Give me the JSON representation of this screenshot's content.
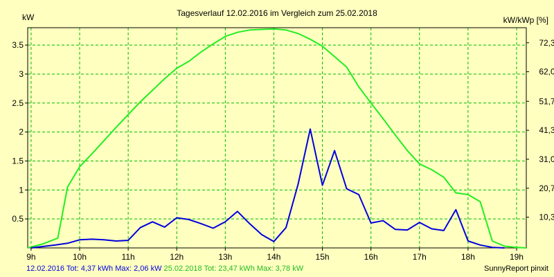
{
  "chart_data": {
    "type": "line",
    "title": "Tagesverlauf 12.02.2016 im Vergleich zum 25.02.2018",
    "ylabel_left": "kW",
    "ylabel_right": "kW/kWp [%]",
    "ylim": [
      0,
      3.8
    ],
    "xlim": [
      8.93,
      19.2
    ],
    "grid": true,
    "x_ticks": [
      9,
      10,
      11,
      12,
      13,
      14,
      15,
      16,
      17,
      18,
      19
    ],
    "x_tick_labels": [
      "9h",
      "10h",
      "11h",
      "12h",
      "13h",
      "14h",
      "15h",
      "16h",
      "17h",
      "18h",
      "19h"
    ],
    "y_ticks_left": [
      0.5,
      1,
      1.5,
      2,
      2.5,
      3,
      3.5
    ],
    "y_tick_labels_left": [
      "0.5",
      "1",
      "1.5",
      "2",
      "2.5",
      "3",
      "3.5"
    ],
    "y_ticks_right": [
      0.53,
      1.03,
      1.53,
      2.03,
      2.53,
      3.04,
      3.54
    ],
    "y_tick_labels_right": [
      "10,3",
      "20,7",
      "31,0",
      "41,3",
      "51,7",
      "62,0",
      "72,3"
    ],
    "series": [
      {
        "name": "12.02.2016",
        "color": "#0000dd",
        "x": [
          9.0,
          9.5,
          9.75,
          10.0,
          10.25,
          10.5,
          10.75,
          11.0,
          11.25,
          11.5,
          11.75,
          12.0,
          12.25,
          12.5,
          12.75,
          13.0,
          13.25,
          13.5,
          13.75,
          14.0,
          14.25,
          14.5,
          14.75,
          15.0,
          15.25,
          15.5,
          15.75,
          16.0,
          16.25,
          16.5,
          16.75,
          17.0,
          17.25,
          17.5,
          17.75,
          18.0,
          18.25,
          18.5,
          18.75
        ],
        "y": [
          0.0,
          0.05,
          0.08,
          0.14,
          0.15,
          0.14,
          0.12,
          0.13,
          0.35,
          0.45,
          0.36,
          0.52,
          0.49,
          0.42,
          0.34,
          0.45,
          0.63,
          0.42,
          0.23,
          0.11,
          0.35,
          1.1,
          2.05,
          1.08,
          1.68,
          1.02,
          0.92,
          0.43,
          0.47,
          0.32,
          0.31,
          0.44,
          0.33,
          0.3,
          0.66,
          0.12,
          0.05,
          0.01,
          0.0
        ]
      },
      {
        "name": "25.02.2018",
        "color": "#22ee22",
        "x": [
          8.93,
          9.25,
          9.55,
          9.75,
          10.0,
          10.25,
          10.5,
          10.75,
          11.0,
          11.25,
          11.5,
          11.75,
          12.0,
          12.25,
          12.5,
          12.75,
          13.0,
          13.25,
          13.5,
          13.75,
          14.0,
          14.25,
          14.5,
          14.75,
          15.0,
          15.25,
          15.5,
          15.75,
          16.0,
          16.25,
          16.5,
          16.75,
          17.0,
          17.25,
          17.5,
          17.75,
          18.0,
          18.25,
          18.5,
          18.75,
          19.0,
          19.2
        ],
        "y": [
          0.0,
          0.07,
          0.17,
          1.05,
          1.4,
          1.62,
          1.85,
          2.08,
          2.3,
          2.52,
          2.72,
          2.92,
          3.1,
          3.22,
          3.38,
          3.52,
          3.65,
          3.72,
          3.76,
          3.77,
          3.78,
          3.76,
          3.7,
          3.6,
          3.48,
          3.3,
          3.12,
          2.78,
          2.5,
          2.23,
          1.95,
          1.68,
          1.45,
          1.35,
          1.22,
          0.95,
          0.92,
          0.8,
          0.12,
          0.03,
          0.01,
          0.0
        ]
      }
    ]
  },
  "footer": {
    "s1_label": "12.02.2016 Tot: 4,37 kWh Max: 2,06 kW",
    "s2_label": "25.02.2018 Tot: 23,47 kWh Max: 3,78 kW",
    "credit": "SunnyReport pinxit"
  }
}
